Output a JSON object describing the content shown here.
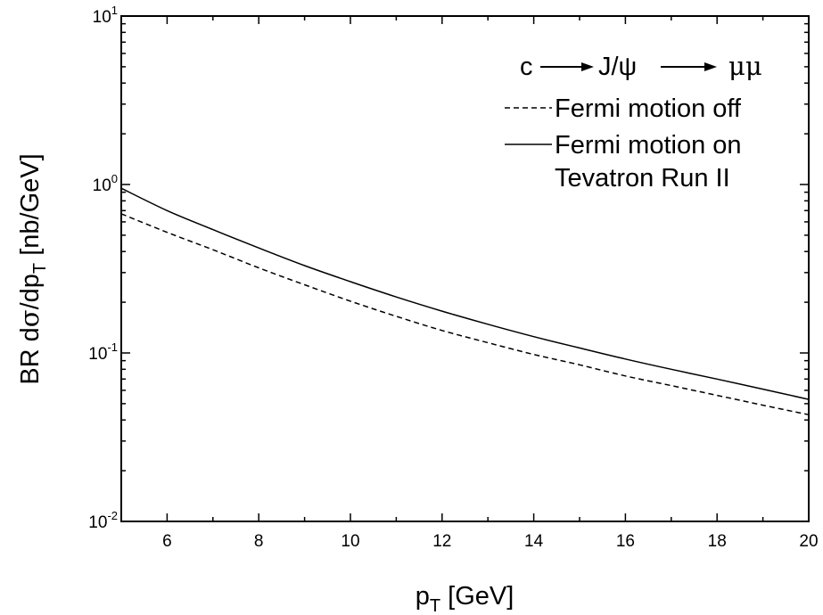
{
  "chart_data": {
    "type": "line",
    "xlabel": "p_T [GeV]",
    "ylabel": "BR dσ/dp_T [nb/GeV]",
    "xlim": [
      5,
      20
    ],
    "ylim": [
      0.01,
      10
    ],
    "yscale": "log",
    "x_ticks": [
      6,
      8,
      10,
      12,
      14,
      16,
      18,
      20
    ],
    "y_ticks": [
      0.01,
      0.1,
      1,
      10
    ],
    "grid": false,
    "legend_position": "top-right",
    "annotation": {
      "parts": [
        "c",
        "J/ψ",
        "μμ"
      ],
      "text": "c → J/ψ → μμ"
    },
    "extra_legend_text": "Tevatron Run II",
    "series": [
      {
        "name": "Fermi motion off",
        "style": "dashed",
        "x": [
          5,
          6,
          7,
          8,
          9,
          10,
          11,
          12,
          13,
          14,
          15,
          16,
          17,
          18,
          19,
          20
        ],
        "y": [
          0.67,
          0.52,
          0.41,
          0.32,
          0.254,
          0.203,
          0.165,
          0.136,
          0.115,
          0.098,
          0.085,
          0.073,
          0.064,
          0.056,
          0.049,
          0.043
        ]
      },
      {
        "name": "Fermi motion on",
        "style": "solid",
        "x": [
          5,
          6,
          7,
          8,
          9,
          10,
          11,
          12,
          13,
          14,
          15,
          16,
          17,
          18,
          19,
          20
        ],
        "y": [
          0.95,
          0.7,
          0.54,
          0.42,
          0.33,
          0.265,
          0.215,
          0.177,
          0.148,
          0.125,
          0.107,
          0.092,
          0.08,
          0.07,
          0.061,
          0.053
        ]
      }
    ]
  }
}
